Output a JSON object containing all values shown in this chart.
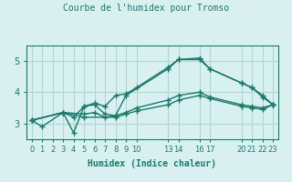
{
  "title": "Courbe de l'humidex pour Tromso",
  "xlabel": "Humidex (Indice chaleur)",
  "bg_color": "#d8f0ee",
  "grid_color": "#b0d8d4",
  "line_color": "#1a7a6e",
  "xlim": [
    -0.5,
    23.5
  ],
  "ylim": [
    2.5,
    5.5
  ],
  "yticks": [
    3,
    4,
    5
  ],
  "xticks": [
    0,
    1,
    2,
    3,
    4,
    5,
    6,
    7,
    8,
    9,
    10,
    13,
    14,
    16,
    17,
    20,
    21,
    22,
    23
  ],
  "xtick_labels": [
    "0",
    "1",
    "2",
    "3",
    "4",
    "5",
    "6",
    "7",
    "8",
    "9",
    "10",
    "13",
    "14",
    "16",
    "17",
    "20",
    "21",
    "22",
    "23"
  ],
  "series": [
    {
      "x": [
        0,
        1,
        3,
        4,
        5,
        6,
        7,
        8,
        9,
        13,
        14,
        16,
        17,
        20,
        21,
        22,
        23
      ],
      "y": [
        3.1,
        2.9,
        3.35,
        2.7,
        3.55,
        3.6,
        3.3,
        3.25,
        3.9,
        4.75,
        5.05,
        5.05,
        4.75,
        4.3,
        4.15,
        3.9,
        3.6
      ]
    },
    {
      "x": [
        0,
        3,
        4,
        5,
        6,
        7,
        8,
        9,
        10,
        13,
        14,
        16,
        17,
        20,
        21,
        22,
        23
      ],
      "y": [
        3.1,
        3.35,
        3.2,
        3.55,
        3.65,
        3.55,
        3.9,
        3.95,
        4.15,
        4.8,
        5.05,
        5.1,
        4.75,
        4.3,
        4.15,
        3.85,
        3.6
      ]
    },
    {
      "x": [
        0,
        3,
        5,
        6,
        7,
        8,
        9,
        10,
        13,
        14,
        16,
        17,
        20,
        21,
        22,
        23
      ],
      "y": [
        3.1,
        3.35,
        3.3,
        3.35,
        3.2,
        3.25,
        3.35,
        3.5,
        3.75,
        3.9,
        4.0,
        3.85,
        3.6,
        3.55,
        3.5,
        3.6
      ]
    },
    {
      "x": [
        0,
        3,
        5,
        8,
        9,
        10,
        13,
        14,
        16,
        17,
        20,
        21,
        22,
        23
      ],
      "y": [
        3.1,
        3.35,
        3.2,
        3.2,
        3.3,
        3.4,
        3.6,
        3.75,
        3.9,
        3.8,
        3.55,
        3.5,
        3.45,
        3.6
      ]
    }
  ]
}
